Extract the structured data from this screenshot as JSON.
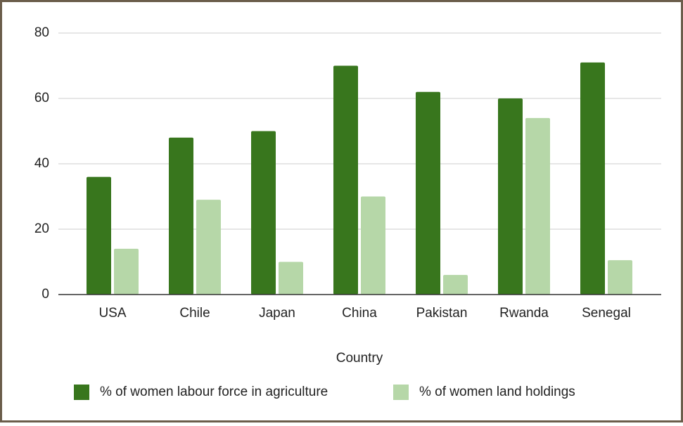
{
  "chart_data": {
    "type": "bar",
    "x_label": "Country",
    "categories": [
      "USA",
      "Chile",
      "Japan",
      "China",
      "Pakistan",
      "Rwanda",
      "Senegal"
    ],
    "series": [
      {
        "name": "% of women labour force in agriculture",
        "color": "#38761d",
        "values": [
          36,
          48,
          50,
          70,
          62,
          60,
          71
        ]
      },
      {
        "name": "% of women land holdings",
        "color": "#b6d7a8",
        "values": [
          14,
          29,
          10,
          30,
          6,
          54,
          10.5
        ]
      }
    ],
    "ylim": [
      0,
      80
    ],
    "yticks": [
      0,
      20,
      40,
      60,
      80
    ],
    "grid": true,
    "legend": "bottom"
  }
}
